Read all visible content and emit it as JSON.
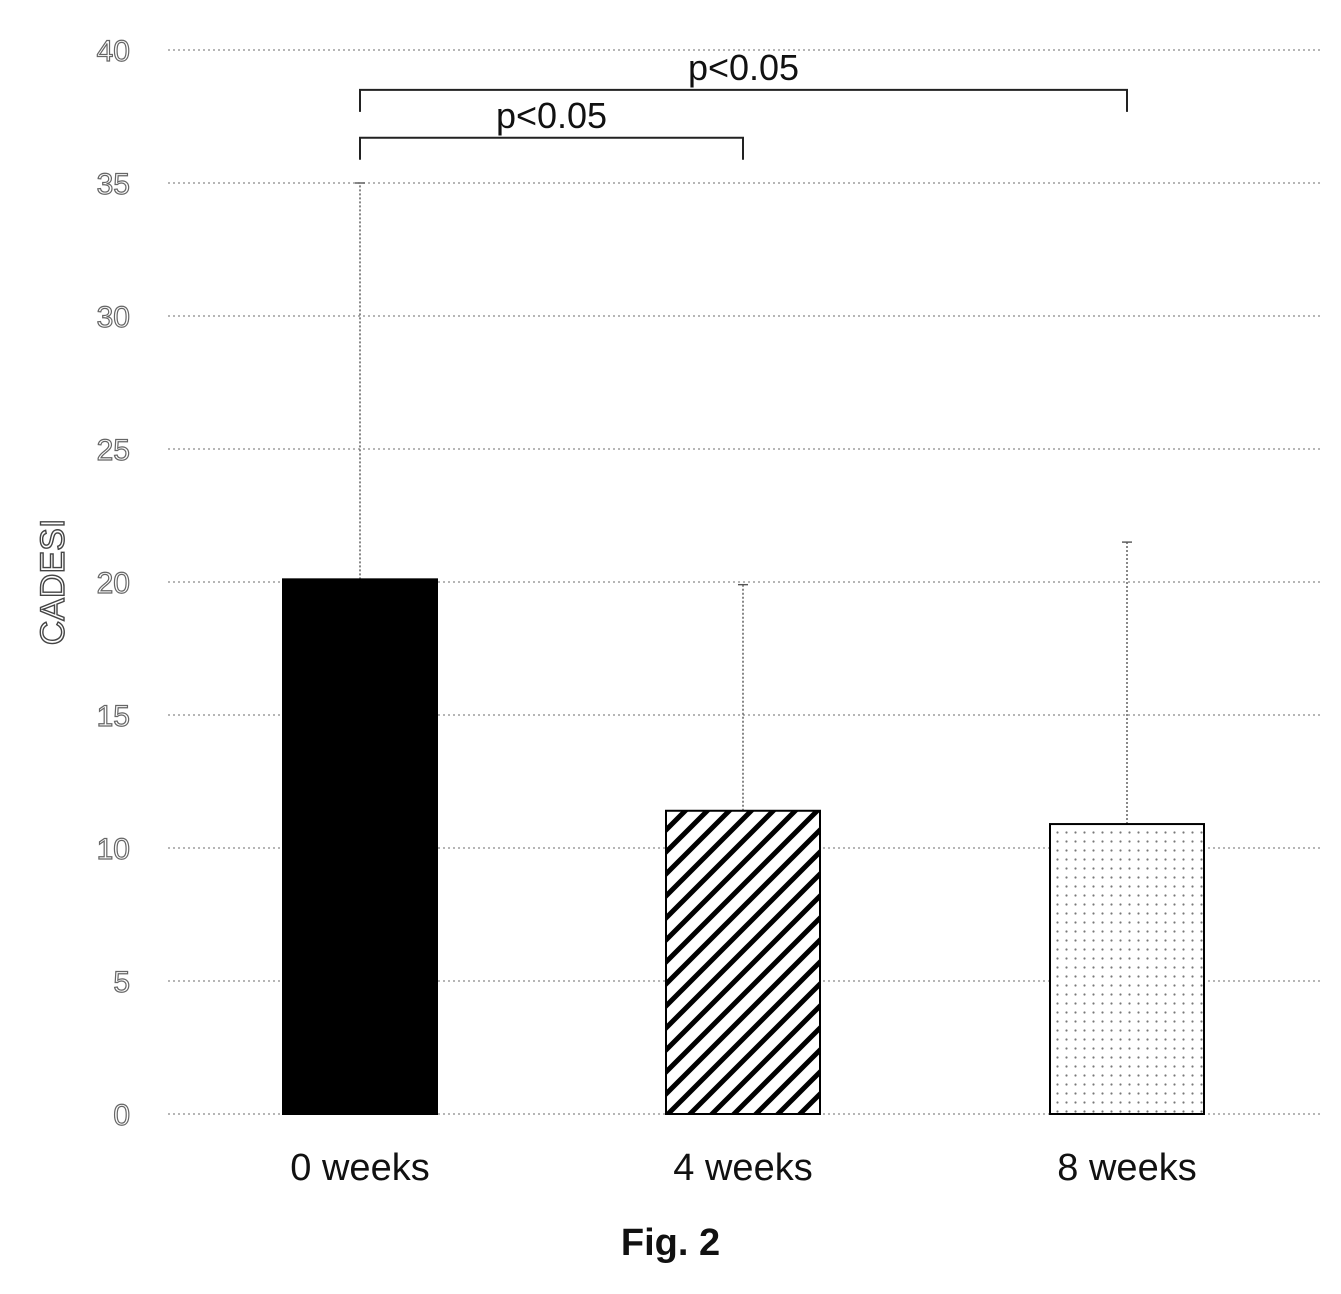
{
  "caption": "Fig. 2",
  "chart_data": {
    "type": "bar",
    "categories": [
      "0 weeks",
      "4 weeks",
      "8 weeks"
    ],
    "values": [
      20.1,
      11.4,
      10.9
    ],
    "error_upper": [
      35.0,
      19.9,
      21.5
    ],
    "fills": [
      "solid-black",
      "diagonal-hatch",
      "dotted"
    ],
    "title": "",
    "xlabel": "",
    "ylabel": "CADESI",
    "ylim": [
      0,
      40
    ],
    "yticks": [
      0,
      5,
      10,
      15,
      20,
      25,
      30,
      35,
      40
    ],
    "grid": true,
    "annotations": [
      {
        "label": "p<0.05",
        "from": 0,
        "to": 2,
        "level": 38.5
      },
      {
        "label": "p<0.05",
        "from": 0,
        "to": 1,
        "level": 36.7
      }
    ]
  }
}
